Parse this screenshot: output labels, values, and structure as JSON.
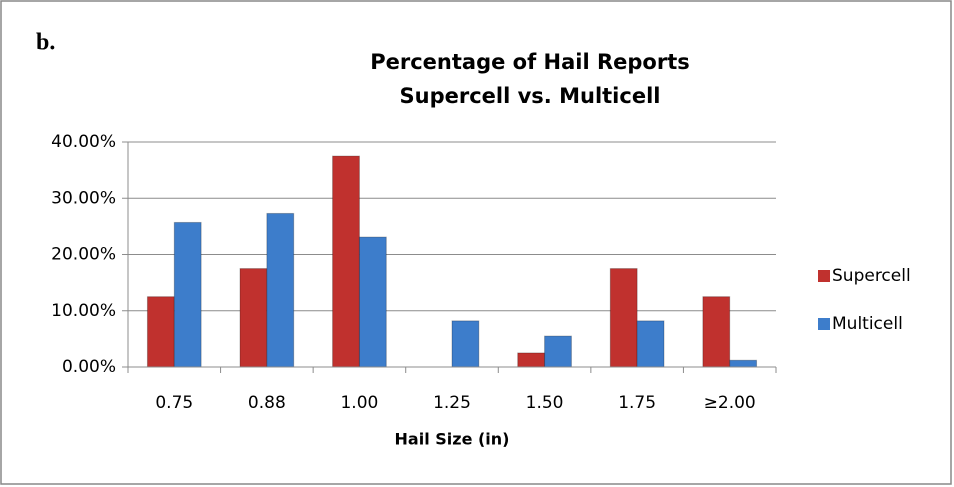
{
  "chart_data": {
    "type": "bar",
    "panel_label": "b.",
    "title": [
      "Percentage of Hail Reports",
      "Supercell vs. Multicell"
    ],
    "x_label": "Hail Size (in)",
    "categories": [
      "0.75",
      "0.88",
      "1.00",
      "1.25",
      "1.50",
      "1.75",
      "≥2.00"
    ],
    "series": [
      {
        "name": "Supercell",
        "color": "#c0312e",
        "values": [
          12.5,
          17.5,
          37.5,
          0,
          2.5,
          17.5,
          12.5
        ]
      },
      {
        "name": "Multicell",
        "color": "#3d7dcb",
        "values": [
          25.7,
          27.3,
          23.1,
          8.2,
          5.5,
          8.2,
          1.2
        ]
      }
    ],
    "ylim": [
      0,
      40
    ],
    "yticks": [
      {
        "value": 0,
        "label": "0.00%"
      },
      {
        "value": 10,
        "label": "10.00%"
      },
      {
        "value": 20,
        "label": "20.00%"
      },
      {
        "value": 30,
        "label": "30.00%"
      },
      {
        "value": 40,
        "label": "40.00%"
      }
    ],
    "grid": true,
    "legend_position": "right"
  }
}
